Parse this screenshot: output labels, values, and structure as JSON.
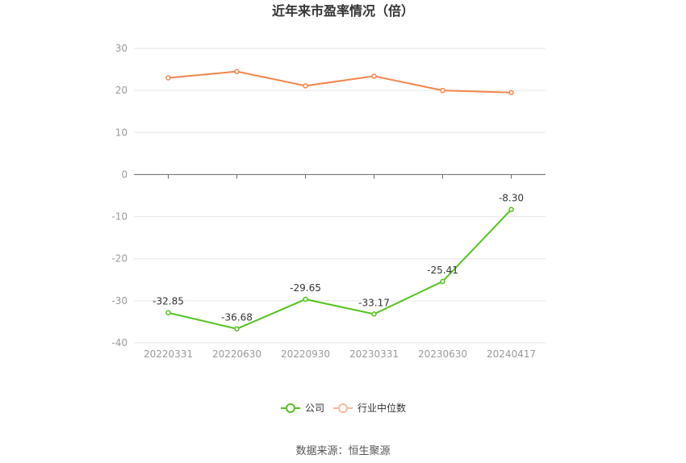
{
  "chart_data": {
    "type": "line",
    "title": "近年来市盈率情况（倍）",
    "categories": [
      "20220331",
      "20220630",
      "20220930",
      "20230331",
      "20230630",
      "20240417"
    ],
    "series": [
      {
        "name": "公司",
        "values": [
          -32.85,
          -36.68,
          -29.65,
          -33.17,
          -25.41,
          -8.3
        ],
        "labels": [
          "-32.85",
          "-36.68",
          "-29.65",
          "-33.17",
          "-25.41",
          "-8.30"
        ],
        "color": "#52c41a"
      },
      {
        "name": "行业中位数",
        "values": [
          23.0,
          24.5,
          21.1,
          23.4,
          20.0,
          19.5
        ],
        "color": "#f5844c"
      }
    ],
    "ylim": [
      -40,
      30
    ],
    "yticks": [
      30,
      20,
      10,
      0,
      -10,
      -20,
      -30,
      -40
    ],
    "grid": true,
    "legend": "bottom-center"
  },
  "source_text": "数据来源：恒生聚源"
}
